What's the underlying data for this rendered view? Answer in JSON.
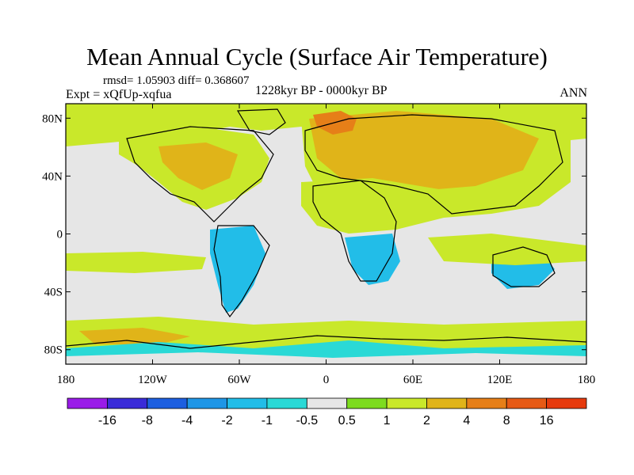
{
  "chart_data": {
    "type": "heatmap",
    "title": "Mean Annual Cycle (Surface Air Temperature)",
    "stats_text": "rmsd= 1.05903  diff= 0.368607",
    "experiment_text": "Expt = xQfUp-xqfua",
    "period_text": "1228kyr BP - 0000kyr BP",
    "season_text": "ANN",
    "x_ticks": [
      "180",
      "120W",
      "60W",
      "0",
      "60E",
      "120E",
      "180"
    ],
    "y_ticks": [
      "80N",
      "40N",
      "0",
      "40S",
      "80S"
    ],
    "x_range": [
      -180,
      180
    ],
    "y_range": [
      -90,
      90
    ],
    "colorbar": {
      "labels": [
        "-16",
        "-8",
        "-4",
        "-2",
        "-1",
        "-0.5",
        "0.5",
        "1",
        "2",
        "4",
        "8",
        "16"
      ],
      "colors": [
        "#9a1ce8",
        "#3a2bd8",
        "#1d5fe0",
        "#1f96e6",
        "#22bde8",
        "#2ad9d6",
        "#e6e6e6",
        "#7ddc1f",
        "#c9e82a",
        "#e0b419",
        "#e67f18",
        "#e65a15",
        "#e63a0d"
      ]
    },
    "field_colors": {
      "neutral": "#e6e6e6",
      "warm_1": "#c9e82a",
      "warm_2": "#e0b419",
      "warm_3": "#e67f18",
      "cool_1": "#2ad9d6",
      "cool_2": "#22bde8"
    }
  }
}
